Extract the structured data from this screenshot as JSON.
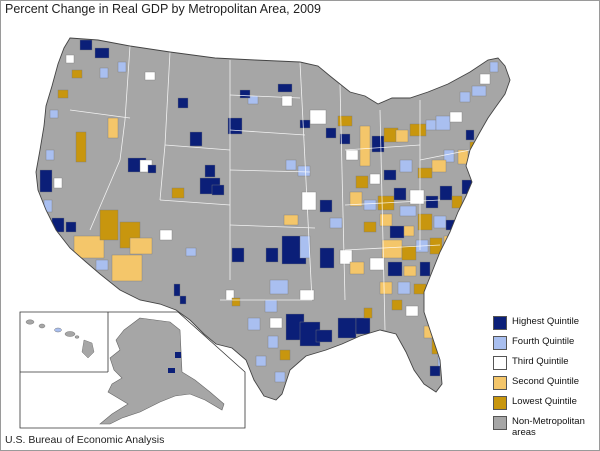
{
  "title": "Percent Change in Real GDP by Metropolitan Area, 2009",
  "source": "U.S. Bureau of Economic Analysis",
  "colors": {
    "highest": "#0b1f78",
    "fourth": "#a9bff0",
    "third": "#ffffff",
    "second": "#f4c66a",
    "lowest": "#c8960e",
    "nonmetro": "#a6a6a6",
    "boundary": "#ffffff",
    "outline": "#444444"
  },
  "legend": [
    {
      "key": "highest",
      "label": "Highest Quintile"
    },
    {
      "key": "fourth",
      "label": "Fourth Quintile"
    },
    {
      "key": "third",
      "label": "Third Quintile"
    },
    {
      "key": "second",
      "label": "Second Quintile"
    },
    {
      "key": "lowest",
      "label": "Lowest Quintile"
    },
    {
      "key": "nonmetro",
      "label": "Non-Metropolitan\nareas"
    }
  ]
}
